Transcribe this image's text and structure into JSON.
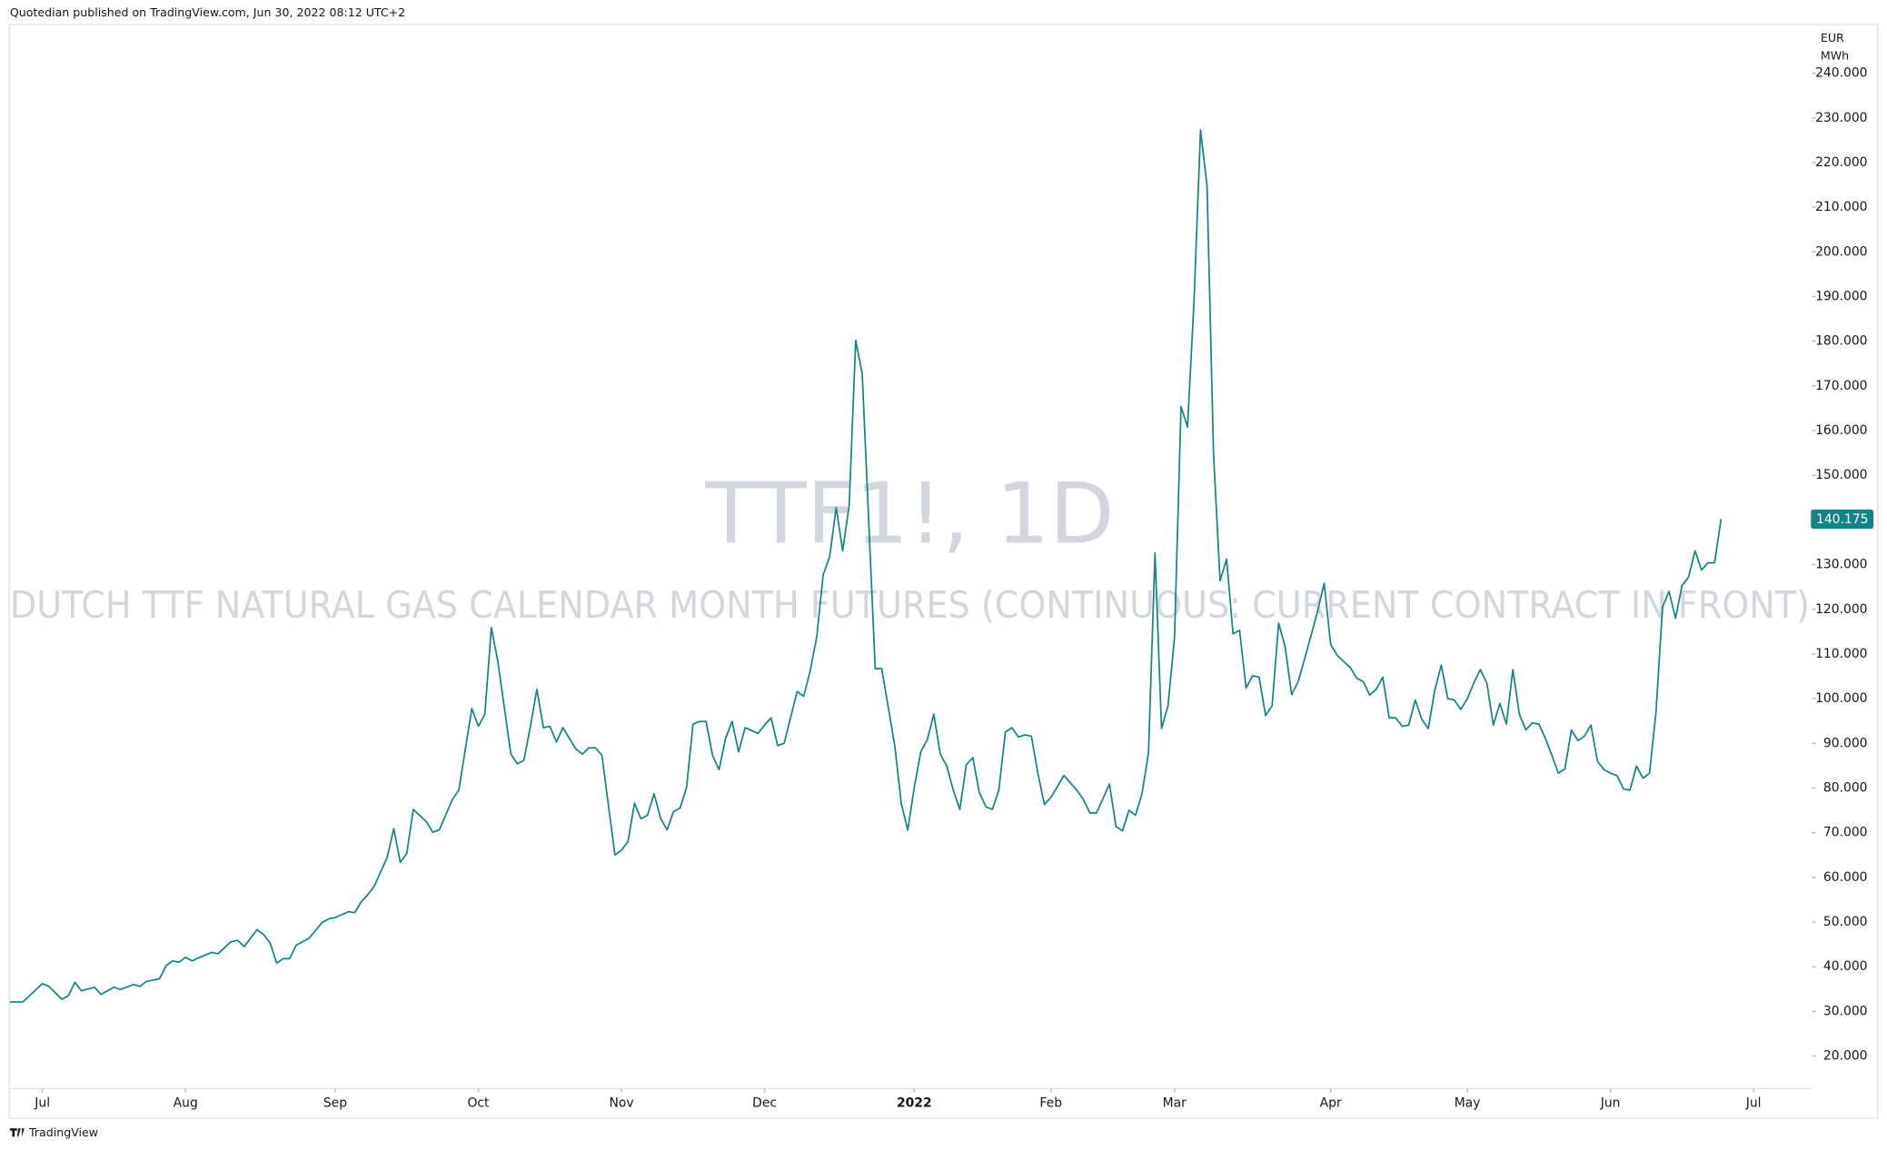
{
  "header": {
    "title": "Quotedian published on TradingView.com, Jun 30, 2022 08:12 UTC+2"
  },
  "footer": {
    "brand": "TradingView"
  },
  "chart_data": {
    "type": "line",
    "title": "TTF1!, 1D",
    "subtitle": "DUTCH TTF NATURAL GAS CALENDAR MONTH FUTURES (CONTINUOUS: CURRENT CONTRACT IN FRONT)",
    "y_label": [
      "EUR",
      "MWh"
    ],
    "color": "#13838a",
    "x": [
      0,
      2,
      5,
      6,
      8,
      9,
      10,
      11,
      13,
      14,
      16,
      17,
      19,
      20,
      21,
      23,
      24,
      25,
      26,
      27,
      28,
      30,
      31,
      32,
      34,
      35,
      36,
      38,
      39,
      40,
      41,
      42,
      43,
      44,
      46,
      48,
      49,
      50,
      52,
      53,
      54,
      55,
      56,
      58,
      59,
      60,
      61,
      62,
      64,
      65,
      66,
      68,
      69,
      71,
      72,
      73,
      74,
      75,
      77,
      78,
      79,
      80,
      81,
      82,
      83,
      84,
      85,
      87,
      88,
      89,
      90,
      91,
      92,
      93,
      94,
      95,
      96,
      97,
      98,
      99,
      100,
      101,
      102,
      103,
      104,
      105,
      106,
      107,
      108,
      109,
      110,
      111,
      112,
      113,
      115,
      116,
      117,
      118,
      119,
      121,
      122,
      123,
      124,
      125,
      126,
      127,
      128,
      129,
      130,
      131,
      133,
      134,
      136,
      137,
      138,
      139,
      140,
      141,
      142,
      143,
      144,
      145,
      146,
      147,
      148,
      149,
      150,
      151,
      152,
      153,
      154,
      155,
      156,
      157,
      158,
      159,
      160,
      162,
      164,
      165,
      166,
      167,
      168,
      169,
      170,
      171,
      172,
      173,
      174,
      175,
      176,
      177,
      178,
      179,
      180,
      181,
      182,
      183,
      184,
      185,
      186,
      187,
      188,
      189,
      190,
      191,
      192,
      193,
      194,
      195,
      196,
      197,
      198,
      199,
      201,
      202,
      203,
      204,
      205,
      206,
      207,
      208,
      209,
      210,
      211,
      212,
      213,
      214,
      215,
      216,
      217,
      218,
      219,
      220,
      221,
      222,
      223,
      224,
      225,
      226,
      227,
      228,
      229,
      230,
      231,
      232,
      233,
      234,
      235,
      236,
      237,
      238,
      239,
      240,
      241,
      242,
      243,
      244,
      245,
      246,
      247,
      248,
      249,
      250,
      251,
      252,
      253,
      254,
      255,
      256,
      257,
      258,
      259,
      260,
      261,
      262,
      263
    ],
    "values": [
      32.1,
      32.1,
      36.2,
      35.6,
      32.7,
      33.5,
      36.5,
      34.6,
      35.4,
      33.8,
      35.4,
      34.9,
      36.0,
      35.6,
      36.7,
      37.3,
      40.2,
      41.3,
      41.0,
      42.1,
      41.3,
      42.6,
      43.2,
      42.9,
      45.6,
      45.9,
      44.5,
      48.3,
      47.2,
      45.3,
      40.8,
      41.8,
      41.8,
      44.8,
      46.4,
      49.9,
      50.7,
      51.0,
      52.3,
      52.1,
      54.5,
      56.1,
      58.0,
      64.5,
      70.9,
      63.4,
      65.3,
      75.2,
      72.5,
      70.1,
      70.6,
      77.4,
      79.5,
      97.8,
      93.8,
      96.5,
      115.9,
      108.3,
      87.6,
      85.4,
      86.2,
      93.8,
      102.1,
      93.5,
      93.8,
      90.3,
      93.5,
      88.7,
      87.6,
      89.0,
      89.0,
      87.3,
      76.0,
      65.0,
      66.1,
      68.0,
      76.6,
      73.1,
      73.9,
      78.7,
      73.3,
      70.6,
      74.7,
      75.5,
      80.1,
      94.3,
      94.9,
      94.9,
      87.3,
      84.1,
      91.1,
      94.9,
      88.1,
      93.5,
      92.2,
      94.1,
      95.7,
      89.5,
      90.0,
      101.6,
      100.5,
      106.2,
      113.7,
      127.7,
      131.8,
      142.8,
      133.1,
      143.3,
      180.2,
      172.7,
      106.7,
      106.7,
      89.5,
      76.6,
      70.6,
      80.1,
      88.1,
      90.8,
      96.5,
      87.6,
      84.9,
      79.5,
      75.2,
      85.2,
      86.8,
      79.0,
      75.8,
      75.2,
      79.5,
      92.5,
      93.5,
      91.4,
      91.9,
      91.6,
      83.3,
      76.3,
      77.9,
      82.8,
      79.5,
      77.4,
      74.4,
      74.4,
      77.6,
      80.9,
      71.4,
      70.4,
      75.0,
      73.9,
      78.7,
      87.9,
      132.6,
      93.3,
      98.4,
      113.7,
      165.4,
      160.8,
      189.1,
      227.3,
      214.7,
      154.6,
      126.4,
      131.2,
      114.5,
      115.3,
      102.4,
      105.1,
      104.8,
      96.2,
      98.4,
      116.9,
      111.6,
      100.9,
      103.8,
      108.9,
      119.6,
      125.8,
      112.1,
      109.7,
      108.3,
      107.0,
      104.6,
      103.8,
      100.8,
      102.1,
      104.8,
      95.7,
      95.7,
      93.8,
      94.1,
      99.7,
      95.4,
      93.3,
      101.9,
      107.5,
      100.0,
      99.7,
      97.6,
      100.0,
      103.5,
      106.5,
      103.5,
      94.1,
      98.9,
      94.3,
      106.5,
      96.5,
      93.0,
      94.6,
      94.3,
      91.1,
      87.3,
      83.3,
      84.3,
      93.0,
      90.6,
      91.6,
      94.1,
      86.0,
      84.1,
      83.3,
      82.8,
      79.8,
      79.5,
      84.9,
      82.2,
      83.3,
      97.0,
      120.5,
      124.0,
      118.0,
      125.3,
      127.2,
      133.1,
      128.8,
      130.4,
      130.4,
      140.175
    ],
    "xlim": [
      0,
      277
    ],
    "xticks": [
      {
        "value": 5,
        "label": "Jul"
      },
      {
        "value": 27,
        "label": "Aug"
      },
      {
        "value": 50,
        "label": "Sep"
      },
      {
        "value": 72,
        "label": "Oct"
      },
      {
        "value": 94,
        "label": "Nov"
      },
      {
        "value": 116,
        "label": "Dec"
      },
      {
        "value": 139,
        "label": "2022"
      },
      {
        "value": 160,
        "label": "Feb"
      },
      {
        "value": 179,
        "label": "Mar"
      },
      {
        "value": 203,
        "label": "Apr"
      },
      {
        "value": 224,
        "label": "May"
      },
      {
        "value": 246,
        "label": "Jun"
      },
      {
        "value": 268,
        "label": "Jul"
      }
    ],
    "ylim": [
      12.7,
      251.0
    ],
    "yticks": [
      {
        "value": 20,
        "label": "20.000"
      },
      {
        "value": 30,
        "label": "30.000"
      },
      {
        "value": 40,
        "label": "40.000"
      },
      {
        "value": 50,
        "label": "50.000"
      },
      {
        "value": 60,
        "label": "60.000"
      },
      {
        "value": 70,
        "label": "70.000"
      },
      {
        "value": 80,
        "label": "80.000"
      },
      {
        "value": 90,
        "label": "90.000"
      },
      {
        "value": 100,
        "label": "100.000"
      },
      {
        "value": 110,
        "label": "110.000"
      },
      {
        "value": 120,
        "label": "120.000"
      },
      {
        "value": 130,
        "label": "130.000"
      },
      {
        "value": 140,
        "label": "140.000"
      },
      {
        "value": 150,
        "label": "150.000"
      },
      {
        "value": 160,
        "label": "160.000"
      },
      {
        "value": 170,
        "label": "170.000"
      },
      {
        "value": 180,
        "label": "180.000"
      },
      {
        "value": 190,
        "label": "190.000"
      },
      {
        "value": 200,
        "label": "200.000"
      },
      {
        "value": 210,
        "label": "210.000"
      },
      {
        "value": 220,
        "label": "220.000"
      },
      {
        "value": 230,
        "label": "230.000"
      },
      {
        "value": 240,
        "label": "240.000"
      }
    ],
    "grid": false
  }
}
